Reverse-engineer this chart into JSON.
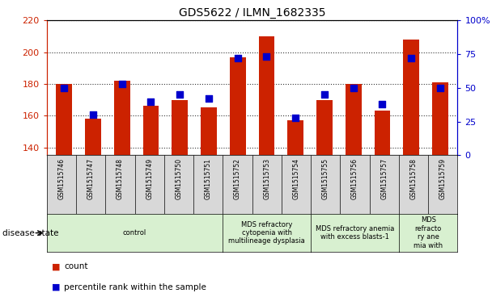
{
  "title": "GDS5622 / ILMN_1682335",
  "samples": [
    "GSM1515746",
    "GSM1515747",
    "GSM1515748",
    "GSM1515749",
    "GSM1515750",
    "GSM1515751",
    "GSM1515752",
    "GSM1515753",
    "GSM1515754",
    "GSM1515755",
    "GSM1515756",
    "GSM1515757",
    "GSM1515758",
    "GSM1515759"
  ],
  "counts": [
    180,
    158,
    182,
    166,
    170,
    165,
    197,
    210,
    157,
    170,
    180,
    163,
    208,
    181
  ],
  "percentiles": [
    50,
    30,
    53,
    40,
    45,
    42,
    72,
    73,
    28,
    45,
    50,
    38,
    72,
    50
  ],
  "ylim_left": [
    135,
    220
  ],
  "ylim_right": [
    0,
    100
  ],
  "yticks_left": [
    140,
    160,
    180,
    200,
    220
  ],
  "yticks_right": [
    0,
    25,
    50,
    75,
    100
  ],
  "bar_color": "#cc2200",
  "dot_color": "#0000cc",
  "bar_width": 0.55,
  "dot_size": 30,
  "bg_color": "#f0f0f0",
  "plot_bg": "#ffffff",
  "tick_box_color": "#d8d8d8",
  "groups": [
    {
      "label": "control",
      "start": 0,
      "end": 6,
      "color": "#d8f0d0"
    },
    {
      "label": "MDS refractory\ncytopenia with\nmultilineage dysplasia",
      "start": 6,
      "end": 9,
      "color": "#d8f0d0"
    },
    {
      "label": "MDS refractory anemia\nwith excess blasts-1",
      "start": 9,
      "end": 12,
      "color": "#d8f0d0"
    },
    {
      "label": "MDS\nrefracto\nry ane\nmia with",
      "start": 12,
      "end": 14,
      "color": "#d8f0d0"
    }
  ],
  "disease_state_label": "disease state",
  "legend_count_label": "count",
  "legend_pct_label": "percentile rank within the sample"
}
